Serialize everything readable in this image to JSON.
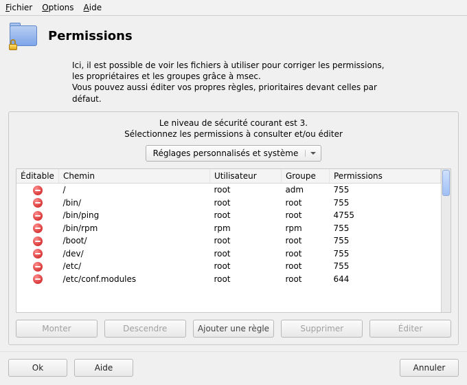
{
  "menu": {
    "file": "Fichier",
    "options": "Options",
    "help": "Aide"
  },
  "header": {
    "title": "Permissions"
  },
  "intro": "Ici, il est possible de voir les fichiers à utiliser pour corriger les permissions, les propriétaires et les groupes grâce à msec.\nVous pouvez aussi éditer vos propres règles, prioritaires devant celles par défaut.",
  "level_line1": "Le niveau de sécurité courant est 3.",
  "level_line2": "Sélectionnez les permissions à consulter et/ou éditer",
  "combo": {
    "selected": "Réglages personnalisés et système"
  },
  "columns": {
    "editable": "Éditable",
    "path": "Chemin",
    "user": "Utilisateur",
    "group": "Groupe",
    "perms": "Permissions"
  },
  "rows": [
    {
      "path": "/",
      "user": "root",
      "group": "adm",
      "perms": "755"
    },
    {
      "path": "/bin/",
      "user": "root",
      "group": "root",
      "perms": "755"
    },
    {
      "path": "/bin/ping",
      "user": "root",
      "group": "root",
      "perms": "4755"
    },
    {
      "path": "/bin/rpm",
      "user": "rpm",
      "group": "rpm",
      "perms": "755"
    },
    {
      "path": "/boot/",
      "user": "root",
      "group": "root",
      "perms": "755"
    },
    {
      "path": "/dev/",
      "user": "root",
      "group": "root",
      "perms": "755"
    },
    {
      "path": "/etc/",
      "user": "root",
      "group": "root",
      "perms": "755"
    },
    {
      "path": "/etc/conf.modules",
      "user": "root",
      "group": "root",
      "perms": "644"
    }
  ],
  "buttons": {
    "up": "Monter",
    "down": "Descendre",
    "add": "Ajouter une règle",
    "del": "Supprimer",
    "edit": "Éditer"
  },
  "footer": {
    "ok": "Ok",
    "help": "Aide",
    "cancel": "Annuler"
  }
}
